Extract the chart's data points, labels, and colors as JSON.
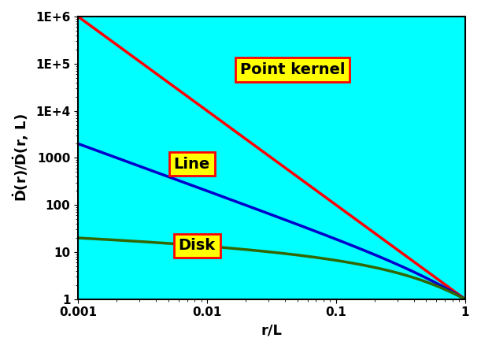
{
  "xlim": [
    0.001,
    1.0
  ],
  "ylim": [
    1.0,
    1000000.0
  ],
  "xlabel": "r/L",
  "ylabel": "D_dot(r)/D_dot(r, L)",
  "background_color": "#00FFFF",
  "point_kernel_color": "#FF0000",
  "line_color": "#0000CC",
  "disk_color": "#336600",
  "line_width": 2.5,
  "label_point_kernel": "Point kernel",
  "label_line": "Line",
  "label_disk": "Disk",
  "label_facecolor": "yellow",
  "label_edgecolor": "red",
  "label_fontsize": 14,
  "axis_label_fontsize": 13,
  "tick_fontsize": 11,
  "yticks": [
    1,
    10,
    100,
    1000,
    10000,
    100000,
    1000000
  ],
  "ytick_labels": [
    "1",
    "10",
    "100",
    "1000",
    "1E+4",
    "1E+5",
    "1E+6"
  ],
  "xticks": [
    0.001,
    0.01,
    0.1,
    1.0
  ],
  "xtick_labels": [
    "0.001",
    "0.01",
    "0.1",
    "1"
  ]
}
